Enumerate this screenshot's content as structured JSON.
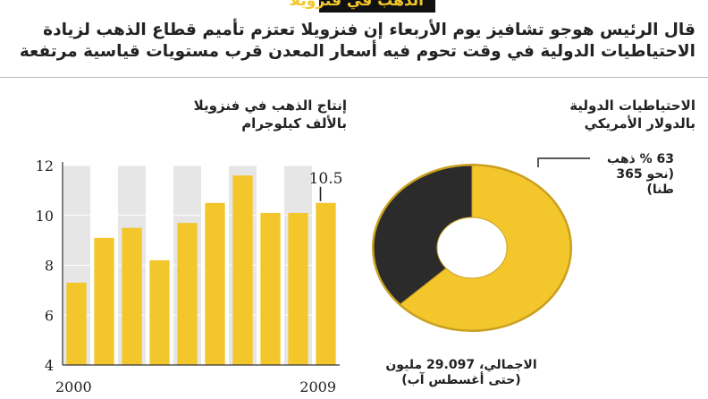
{
  "header": {
    "title": "الذهب في فنزويلا",
    "lead_lines": [
      "قال الرئيس هوجو تشافيز يوم الأربعاء إن فنزويلا تعتزم تأميم قطاع الذهب لزيادة",
      "الاحتياطيات الدولية في وقت تحوم فيه أسعار المعدن قرب مستويات قياسية مرتفعة"
    ]
  },
  "bar_chart": {
    "title_lines": [
      "إنتاج الذهب في فنزويلا",
      "بالألف كيلوجرام"
    ]
  },
  "pie_chart": {
    "title_lines": [
      "الاحتياطيات الدولية",
      "بالدولار الأمريكي"
    ],
    "gold_note_lines": [
      "63 % ذهب",
      "(نحو 365",
      "طنا)"
    ],
    "total_note_lines": [
      "الاجمالي، 29.097 مليون",
      "(حتى أغسطس آب)"
    ]
  },
  "colors": {
    "gold": "#f3c62c",
    "gold_dark": "#c9a020",
    "black": "#2b2b2b",
    "stripe": "#e6e6e6"
  },
  "chart_data": [
    {
      "type": "bar",
      "title": "إنتاج الذهب في فنزويلا",
      "ylabel": "بالألف كيلوجرام",
      "categories": [
        "2000",
        "2001",
        "2002",
        "2003",
        "2004",
        "2005",
        "2006",
        "2007",
        "2008",
        "2009"
      ],
      "x_tick_labels": [
        "2000",
        "2009"
      ],
      "values": [
        7.3,
        9.1,
        9.5,
        8.2,
        9.7,
        10.5,
        11.6,
        10.1,
        10.1,
        10.5
      ],
      "data_labels": [
        {
          "index": 9,
          "text": "10.5"
        }
      ],
      "ylim": [
        4,
        12
      ],
      "yticks": [
        "4",
        "6",
        "8",
        "10",
        "12"
      ],
      "grid": "alternating vertical stripes"
    },
    {
      "type": "pie",
      "title": "الاحتياطيات الدولية",
      "style": "donut",
      "slices": [
        {
          "label": "ذهب",
          "value": 63
        },
        {
          "label": "",
          "value": 37
        }
      ]
    }
  ]
}
